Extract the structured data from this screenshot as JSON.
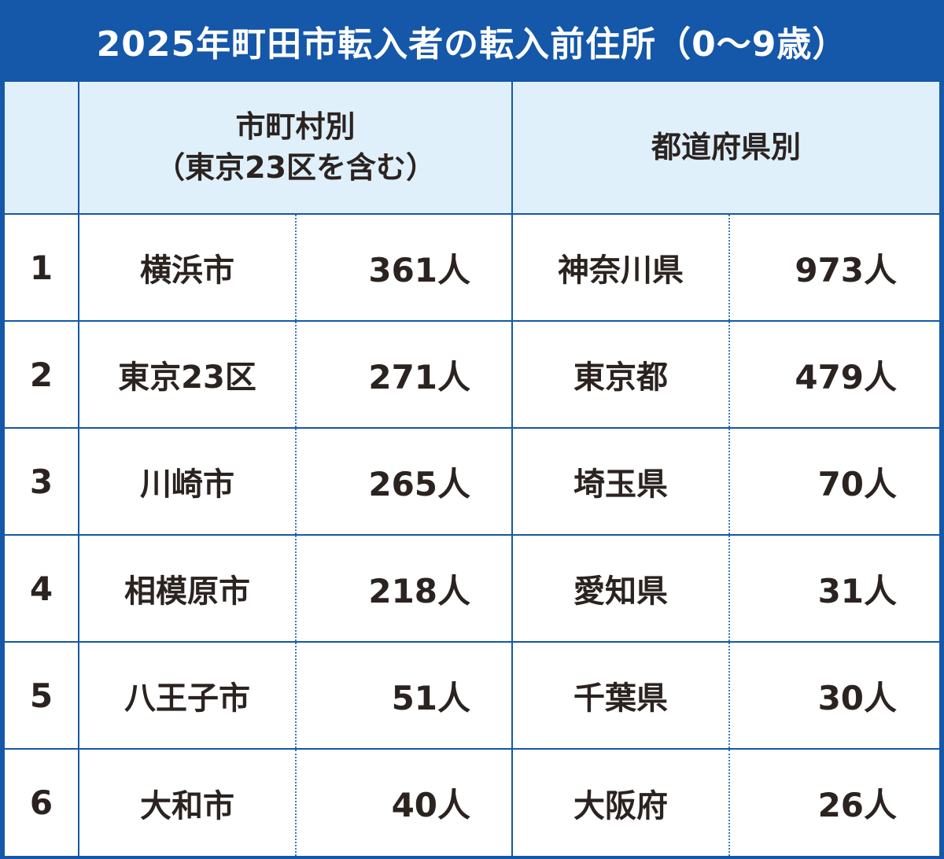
{
  "title": "2025年町田市転入者の転入前住所（0～9歳）",
  "headers": {
    "city_line1": "市町村別",
    "city_line2": "（東京23区を含む）",
    "prefecture": "都道府県別"
  },
  "rows": [
    {
      "rank": "1",
      "city": "横浜市",
      "city_count": "361人",
      "prefecture": "神奈川県",
      "pref_count": "973人"
    },
    {
      "rank": "2",
      "city": "東京23区",
      "city_count": "271人",
      "prefecture": "東京都",
      "pref_count": "479人"
    },
    {
      "rank": "3",
      "city": "川崎市",
      "city_count": "265人",
      "prefecture": "埼玉県",
      "pref_count": "70人"
    },
    {
      "rank": "4",
      "city": "相模原市",
      "city_count": "218人",
      "prefecture": "愛知県",
      "pref_count": "31人"
    },
    {
      "rank": "5",
      "city": "八王子市",
      "city_count": "51人",
      "prefecture": "千葉県",
      "pref_count": "30人"
    },
    {
      "rank": "6",
      "city": "大和市",
      "city_count": "40人",
      "prefecture": "大阪府",
      "pref_count": "26人"
    }
  ],
  "colors": {
    "frame": "#1557a8",
    "header_bg": "#dff0fb",
    "text": "#2b2320",
    "title_text": "#ffffff"
  }
}
